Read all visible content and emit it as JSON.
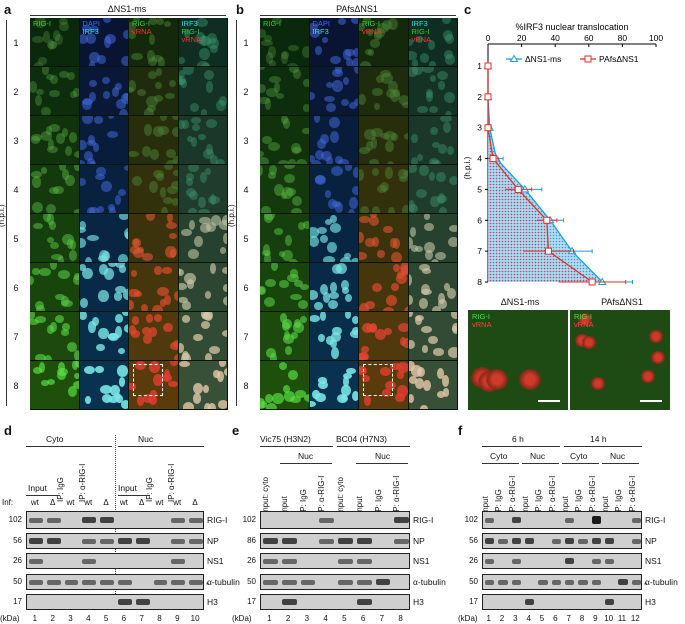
{
  "panels": {
    "a": {
      "letter": "a",
      "title": "ΔNS1-ms"
    },
    "b": {
      "letter": "b",
      "title": "PAfsΔNS1"
    },
    "c": {
      "letter": "c"
    },
    "d": {
      "letter": "d"
    },
    "e": {
      "letter": "e"
    },
    "f": {
      "letter": "f"
    }
  },
  "micro": {
    "channels": [
      "RIG-I",
      "DAPI IRF3",
      "RIG-I vRNA",
      "IRF3 RIG-I vRNA"
    ],
    "channel_lines": [
      [
        "RIG-I"
      ],
      [
        "DAPI",
        "IRF3"
      ],
      [
        "RIG-I",
        "vRNA"
      ],
      [
        "IRF3",
        "RIG-I",
        "vRNA"
      ]
    ],
    "channel_colors": [
      [
        "#2ecc40"
      ],
      [
        "#3b6bff",
        "#36e0e0"
      ],
      [
        "#2ecc40",
        "#ff3030"
      ],
      [
        "#36e0e0",
        "#2ecc40",
        "#ff3030"
      ]
    ],
    "rows": [
      "1",
      "2",
      "3",
      "4",
      "5",
      "6",
      "7",
      "8"
    ],
    "hpi_label": "(h.p.i.)"
  },
  "chart_data": {
    "type": "area",
    "title": "%IRF3 nuclear translocation",
    "xlabel": "%IRF3 nuclear translocation",
    "ylabel": "(h.p.i.)",
    "xlim": [
      0,
      100
    ],
    "xticks": [
      "0",
      "20",
      "40",
      "60",
      "80",
      "100"
    ],
    "y_categories": [
      "1",
      "2",
      "3",
      "4",
      "5",
      "6",
      "7",
      "8"
    ],
    "orientation": "horizontal (time runs downward)",
    "series": [
      {
        "name": "ΔNS1-ms",
        "color": "#1e9fe0",
        "marker": "triangle",
        "values": [
          0,
          0,
          1,
          5,
          22,
          37,
          50,
          68
        ],
        "err": [
          0,
          0,
          1,
          4,
          10,
          8,
          12,
          18
        ]
      },
      {
        "name": "PAfsΔNS1",
        "color": "#e0302a",
        "marker": "square",
        "values": [
          0,
          0,
          0,
          3,
          18,
          35,
          36,
          62
        ],
        "err": [
          0,
          0,
          0,
          3,
          8,
          6,
          15,
          20
        ]
      }
    ],
    "legend_position": "top"
  },
  "insets": [
    {
      "title": "ΔNS1-ms",
      "ch1": "RIG-I",
      "ch2": "vRNA"
    },
    {
      "title": "PAfsΔNS1",
      "ch1": "RIG-I",
      "ch2": "vRNA"
    }
  ],
  "blot_d": {
    "fractions": [
      "Cyto",
      "Nuc"
    ],
    "groups": [
      "Input",
      "IP: IgG",
      "IP: α-RIG-I"
    ],
    "inf_label": "Inf:",
    "inf": [
      "wt",
      "Δ",
      "wt",
      "wt",
      "Δ",
      "wt",
      "Δ",
      "wt",
      "wt",
      "Δ"
    ],
    "lanes": [
      "1",
      "2",
      "3",
      "4",
      "5",
      "6",
      "7",
      "8",
      "9",
      "10"
    ],
    "markers": [
      "102",
      "56",
      "26",
      "50",
      "17"
    ],
    "proteins": [
      "RIG-I",
      "NP",
      "NS1",
      "α-tubulin",
      "H3"
    ],
    "kda": "(kDa)",
    "star": "*"
  },
  "blot_e": {
    "strains": [
      "Vic75 (H3N2)",
      "BC04 (H7N3)"
    ],
    "nuc": "Nuc",
    "lane_headers": [
      "Input: cyto",
      "Input",
      "IP: IgG",
      "IP: α-RIG-I"
    ],
    "lanes": [
      "1",
      "2",
      "3",
      "4",
      "5",
      "6",
      "7",
      "8"
    ],
    "markers": [
      "102",
      "86",
      "26",
      "50",
      "17"
    ],
    "proteins": [
      "RIG-I",
      "NP",
      "NS1",
      "α-tubulin",
      "H3"
    ],
    "kda": "(kDa)"
  },
  "blot_f": {
    "times": [
      "6 h",
      "14 h"
    ],
    "fractions": [
      "Cyto",
      "Nuc",
      "Cyto",
      "Nuc"
    ],
    "lane_headers": [
      "Input",
      "IP: IgG",
      "IP: α-RIG-I"
    ],
    "lanes": [
      "1",
      "2",
      "3",
      "4",
      "5",
      "6",
      "7",
      "8",
      "9",
      "10",
      "11",
      "12"
    ],
    "markers": [
      "102",
      "56",
      "26",
      "50",
      "17"
    ],
    "proteins": [
      "RIG-I",
      "NP",
      "NS1",
      "α-tubulin",
      "H3"
    ],
    "kda": "(kDa)",
    "star": "*"
  }
}
